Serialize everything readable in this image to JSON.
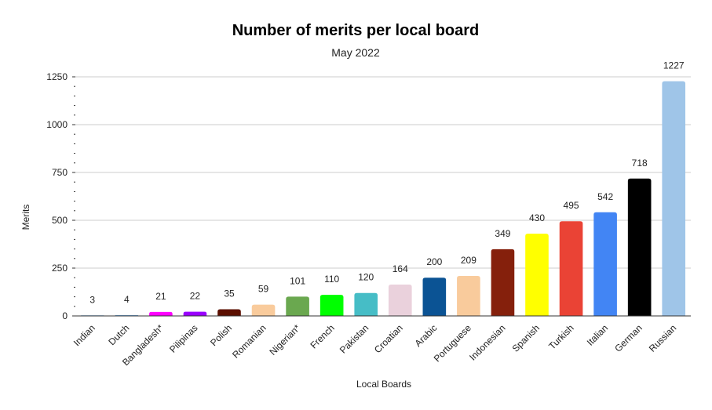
{
  "chart_data": {
    "type": "bar",
    "title": "Number of merits per local board",
    "subtitle": "May 2022",
    "xlabel": "Local Boards",
    "ylabel": "Merits",
    "ylim": [
      0,
      1250
    ],
    "yticks": [
      0,
      250,
      500,
      750,
      1000,
      1250
    ],
    "grid": true,
    "legend": "none",
    "categories": [
      "Indian",
      "Dutch",
      "Bangladesh*",
      "Pilipinas",
      "Polish",
      "Romanian",
      "Nigerian*",
      "French",
      "Pakistan",
      "Croatian",
      "Arabic",
      "Portuguese",
      "Indonesian",
      "Spanish",
      "Turkish",
      "Italian",
      "German",
      "Russian"
    ],
    "values": [
      3,
      4,
      21,
      22,
      35,
      59,
      101,
      110,
      120,
      164,
      200,
      209,
      349,
      430,
      495,
      542,
      718,
      1227
    ],
    "colors": [
      "#6fa8dc",
      "#6fa8dc",
      "#ff00ff",
      "#9900ff",
      "#5b0f00",
      "#f9cb9c",
      "#6aa84f",
      "#00ff00",
      "#46bdc6",
      "#ead1dc",
      "#0b5394",
      "#f9cb9c",
      "#85200c",
      "#ffff00",
      "#ea4335",
      "#4285f4",
      "#000000",
      "#9fc5e8"
    ]
  }
}
